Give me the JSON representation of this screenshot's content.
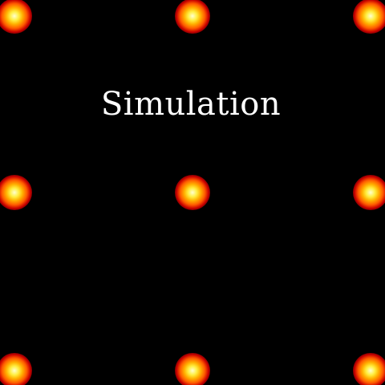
{
  "title": "Simulation",
  "colors": {
    "background": "#000000",
    "text": "#ffffff",
    "glow_core": "#ffee40",
    "glow_edge": "#c80000"
  },
  "lights": {
    "rows": 3,
    "columns": 3,
    "icon": "glowing-dot-icon"
  }
}
